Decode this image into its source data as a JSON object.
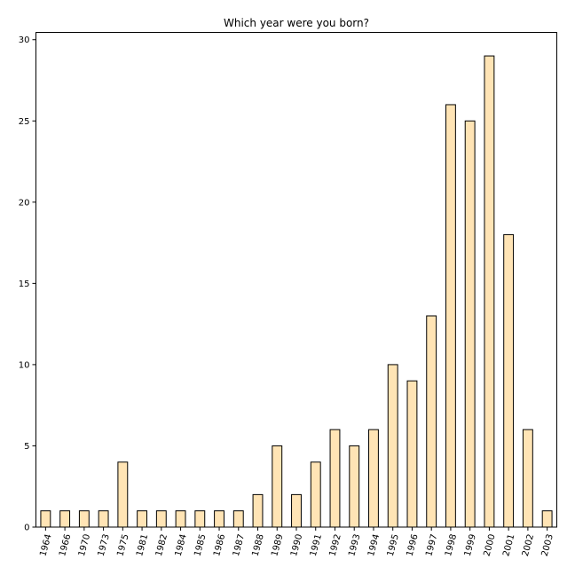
{
  "chart_data": {
    "type": "bar",
    "title": "Which year were you born?",
    "xlabel": "",
    "ylabel": "",
    "categories": [
      "1964",
      "1966",
      "1970",
      "1973",
      "1975",
      "1981",
      "1982",
      "1984",
      "1985",
      "1986",
      "1987",
      "1988",
      "1989",
      "1990",
      "1991",
      "1992",
      "1993",
      "1994",
      "1995",
      "1996",
      "1997",
      "1998",
      "1999",
      "2000",
      "2001",
      "2002",
      "2003"
    ],
    "values": [
      1,
      1,
      1,
      1,
      4,
      1,
      1,
      1,
      1,
      1,
      1,
      2,
      5,
      2,
      4,
      6,
      5,
      6,
      10,
      9,
      13,
      26,
      25,
      29,
      18,
      6,
      1
    ],
    "ylim": [
      0,
      30.45
    ],
    "yticks": [
      0,
      5,
      10,
      15,
      20,
      25,
      30
    ],
    "grid": false,
    "bar_color": "#ffe4b5",
    "edge_color": "#000000"
  }
}
